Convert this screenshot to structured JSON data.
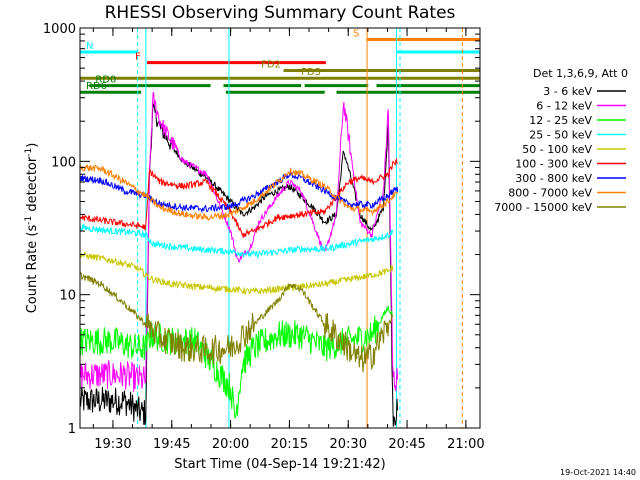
{
  "chart_data": {
    "type": "line",
    "title": "RHESSI Observing Summary Count Rates",
    "xlabel": "Start Time (04-Sep-14 19:21:42)",
    "ylabel_main": "Count Rate (s",
    "ylabel_sup": "-1",
    "ylabel_rest": " detector",
    "ylabel_close": ")",
    "y_scale": "log",
    "ylim": [
      1,
      1000
    ],
    "xlim_minutes": [
      19.36,
      21.06
    ],
    "x_ticks": [
      {
        "t": 19.5,
        "label": "19:30"
      },
      {
        "t": 19.75,
        "label": "19:45"
      },
      {
        "t": 20.0,
        "label": "20:00"
      },
      {
        "t": 20.25,
        "label": "20:15"
      },
      {
        "t": 20.5,
        "label": "20:30"
      },
      {
        "t": 20.75,
        "label": "20:45"
      },
      {
        "t": 21.0,
        "label": "21:00"
      }
    ],
    "y_ticks": [
      {
        "v": 1,
        "label": "1"
      },
      {
        "v": 10,
        "label": "10"
      },
      {
        "v": 100,
        "label": "100"
      },
      {
        "v": 1000,
        "label": "1000"
      }
    ],
    "legend_title": "Det 1,3,6,9, Att 0",
    "series": [
      {
        "name": "3 - 6 keV",
        "color": "#000000",
        "points": [
          [
            19.36,
            1.6
          ],
          [
            19.55,
            1.6
          ],
          [
            19.62,
            1.3
          ],
          [
            19.64,
            1.3
          ],
          [
            19.655,
            80
          ],
          [
            19.67,
            250
          ],
          [
            19.7,
            180
          ],
          [
            19.75,
            130
          ],
          [
            19.8,
            100
          ],
          [
            19.9,
            75
          ],
          [
            20.0,
            50
          ],
          [
            20.05,
            40
          ],
          [
            20.1,
            45
          ],
          [
            20.15,
            55
          ],
          [
            20.2,
            60
          ],
          [
            20.25,
            65
          ],
          [
            20.3,
            55
          ],
          [
            20.35,
            45
          ],
          [
            20.4,
            35
          ],
          [
            20.45,
            40
          ],
          [
            20.48,
            120
          ],
          [
            20.5,
            90
          ],
          [
            20.55,
            40
          ],
          [
            20.6,
            30
          ],
          [
            20.65,
            45
          ],
          [
            20.67,
            200
          ],
          [
            20.69,
            1.3
          ],
          [
            20.71,
            1.3
          ]
        ]
      },
      {
        "name": "6 - 12 keV",
        "color": "#ff00ff",
        "points": [
          [
            19.36,
            2.5
          ],
          [
            19.55,
            2.5
          ],
          [
            19.62,
            2.3
          ],
          [
            19.64,
            2.3
          ],
          [
            19.655,
            80
          ],
          [
            19.67,
            300
          ],
          [
            19.7,
            200
          ],
          [
            19.75,
            140
          ],
          [
            19.8,
            100
          ],
          [
            19.9,
            80
          ],
          [
            20.0,
            30
          ],
          [
            20.03,
            18
          ],
          [
            20.08,
            22
          ],
          [
            20.12,
            35
          ],
          [
            20.2,
            55
          ],
          [
            20.25,
            70
          ],
          [
            20.3,
            60
          ],
          [
            20.35,
            35
          ],
          [
            20.4,
            20
          ],
          [
            20.45,
            40
          ],
          [
            20.48,
            280
          ],
          [
            20.5,
            160
          ],
          [
            20.55,
            35
          ],
          [
            20.6,
            28
          ],
          [
            20.65,
            60
          ],
          [
            20.67,
            250
          ],
          [
            20.69,
            2.3
          ],
          [
            20.71,
            2.3
          ]
        ]
      },
      {
        "name": "12 - 25 keV",
        "color": "#00ff00",
        "points": [
          [
            19.36,
            4.5
          ],
          [
            19.5,
            4.5
          ],
          [
            19.6,
            4
          ],
          [
            19.64,
            4
          ],
          [
            19.66,
            5
          ],
          [
            19.75,
            4.5
          ],
          [
            19.85,
            4.5
          ],
          [
            20.0,
            2
          ],
          [
            20.02,
            1.2
          ],
          [
            20.05,
            3
          ],
          [
            20.1,
            4
          ],
          [
            20.2,
            5
          ],
          [
            20.3,
            5
          ],
          [
            20.4,
            4
          ],
          [
            20.5,
            4.5
          ],
          [
            20.6,
            5
          ],
          [
            20.67,
            8
          ],
          [
            20.69,
            7
          ]
        ]
      },
      {
        "name": "25 - 50 keV",
        "color": "#00ffff",
        "points": [
          [
            19.36,
            32
          ],
          [
            19.5,
            30
          ],
          [
            19.6,
            29
          ],
          [
            19.64,
            28
          ],
          [
            19.67,
            24
          ],
          [
            19.75,
            23
          ],
          [
            19.85,
            22
          ],
          [
            20.0,
            21
          ],
          [
            20.1,
            20
          ],
          [
            20.2,
            21
          ],
          [
            20.3,
            22
          ],
          [
            20.4,
            22
          ],
          [
            20.5,
            24
          ],
          [
            20.6,
            26
          ],
          [
            20.67,
            28
          ],
          [
            20.69,
            30
          ]
        ]
      },
      {
        "name": "50 - 100 keV",
        "color": "#c8c800",
        "points": [
          [
            19.36,
            20
          ],
          [
            19.5,
            18
          ],
          [
            19.6,
            16
          ],
          [
            19.64,
            14
          ],
          [
            19.67,
            13
          ],
          [
            19.75,
            12
          ],
          [
            19.85,
            11.5
          ],
          [
            20.0,
            11
          ],
          [
            20.1,
            10.5
          ],
          [
            20.2,
            11
          ],
          [
            20.3,
            11.5
          ],
          [
            20.4,
            12
          ],
          [
            20.5,
            13
          ],
          [
            20.6,
            14
          ],
          [
            20.67,
            15
          ],
          [
            20.69,
            16
          ]
        ]
      },
      {
        "name": "100 - 300 keV",
        "color": "#ff0000",
        "points": [
          [
            19.36,
            38
          ],
          [
            19.5,
            35
          ],
          [
            19.6,
            33
          ],
          [
            19.64,
            32
          ],
          [
            19.655,
            85
          ],
          [
            19.7,
            70
          ],
          [
            19.8,
            65
          ],
          [
            19.9,
            70
          ],
          [
            20.0,
            42
          ],
          [
            20.05,
            28
          ],
          [
            20.1,
            30
          ],
          [
            20.2,
            38
          ],
          [
            20.3,
            40
          ],
          [
            20.4,
            42
          ],
          [
            20.5,
            70
          ],
          [
            20.55,
            75
          ],
          [
            20.6,
            70
          ],
          [
            20.67,
            80
          ],
          [
            20.69,
            95
          ],
          [
            20.71,
            100
          ]
        ]
      },
      {
        "name": "300 - 800 keV",
        "color": "#0000ff",
        "points": [
          [
            19.36,
            75
          ],
          [
            19.45,
            72
          ],
          [
            19.55,
            60
          ],
          [
            19.64,
            55
          ],
          [
            19.7,
            48
          ],
          [
            19.8,
            45
          ],
          [
            19.9,
            44
          ],
          [
            20.0,
            46
          ],
          [
            20.1,
            55
          ],
          [
            20.2,
            70
          ],
          [
            20.25,
            80
          ],
          [
            20.3,
            75
          ],
          [
            20.4,
            60
          ],
          [
            20.5,
            48
          ],
          [
            20.6,
            47
          ],
          [
            20.67,
            55
          ],
          [
            20.69,
            60
          ],
          [
            20.71,
            62
          ]
        ]
      },
      {
        "name": "800 - 7000 keV",
        "color": "#ff8000",
        "points": [
          [
            19.36,
            90
          ],
          [
            19.45,
            88
          ],
          [
            19.55,
            70
          ],
          [
            19.64,
            55
          ],
          [
            19.7,
            45
          ],
          [
            19.8,
            40
          ],
          [
            19.9,
            38
          ],
          [
            20.0,
            40
          ],
          [
            20.1,
            50
          ],
          [
            20.2,
            70
          ],
          [
            20.25,
            85
          ],
          [
            20.3,
            80
          ],
          [
            20.4,
            65
          ],
          [
            20.5,
            45
          ],
          [
            20.6,
            42
          ],
          [
            20.67,
            50
          ],
          [
            20.69,
            55
          ],
          [
            20.71,
            57
          ]
        ]
      },
      {
        "name": "7000 - 15000 keV",
        "color": "#808000",
        "points": [
          [
            19.36,
            14
          ],
          [
            19.45,
            12
          ],
          [
            19.55,
            8.5
          ],
          [
            19.64,
            6
          ],
          [
            19.7,
            4.8
          ],
          [
            19.8,
            4
          ],
          [
            19.9,
            3.8
          ],
          [
            20.0,
            4
          ],
          [
            20.1,
            6
          ],
          [
            20.2,
            9
          ],
          [
            20.25,
            12
          ],
          [
            20.3,
            11
          ],
          [
            20.4,
            6
          ],
          [
            20.5,
            4
          ],
          [
            20.55,
            3.2
          ],
          [
            20.6,
            3.5
          ],
          [
            20.67,
            6
          ],
          [
            20.69,
            7
          ]
        ]
      }
    ],
    "flags": [
      {
        "label": "N",
        "color": "#00ffff",
        "y": 660,
        "segments": [
          [
            19.36,
            19.605
          ],
          [
            20.705,
            21.06
          ]
        ]
      },
      {
        "label": "S",
        "color": "#ff8000",
        "y": 820,
        "segments": [
          [
            20.58,
            21.06
          ]
        ]
      },
      {
        "label": "F",
        "color": "#ff0000",
        "y": 550,
        "segments": [
          [
            19.645,
            20.405
          ]
        ]
      },
      {
        "label": "FD2",
        "color": "#808000",
        "y": 480,
        "segments": [
          [
            20.225,
            21.06
          ]
        ]
      },
      {
        "label": "FD3",
        "color": "#808000",
        "y": 420,
        "segments": [
          [
            19.36,
            21.06
          ]
        ]
      },
      {
        "label": "RD0",
        "color": "#008000",
        "y": 370,
        "segments": [
          [
            19.4,
            19.915
          ],
          [
            19.97,
            20.3
          ],
          [
            20.315,
            20.585
          ],
          [
            20.62,
            21.06
          ]
        ]
      },
      {
        "label": "RD6",
        "color": "#008000",
        "y": 330,
        "segments": [
          [
            19.36,
            19.62
          ],
          [
            19.98,
            20.4
          ],
          [
            20.45,
            21.06
          ]
        ]
      }
    ],
    "vertical_lines": [
      {
        "t": 19.605,
        "color": "#00ffff",
        "style": "dashed"
      },
      {
        "t": 19.64,
        "color": "#00ffff",
        "style": "solid"
      },
      {
        "t": 19.993,
        "color": "#00ffff",
        "style": "solid"
      },
      {
        "t": 20.58,
        "color": "#ff8000",
        "style": "solid"
      },
      {
        "t": 20.705,
        "color": "#00ffff",
        "style": "solid"
      },
      {
        "t": 20.72,
        "color": "#00ffff",
        "style": "dashed"
      },
      {
        "t": 20.985,
        "color": "#ff8000",
        "style": "dashed"
      }
    ],
    "footer": "19-Oct-2021 14:40"
  }
}
